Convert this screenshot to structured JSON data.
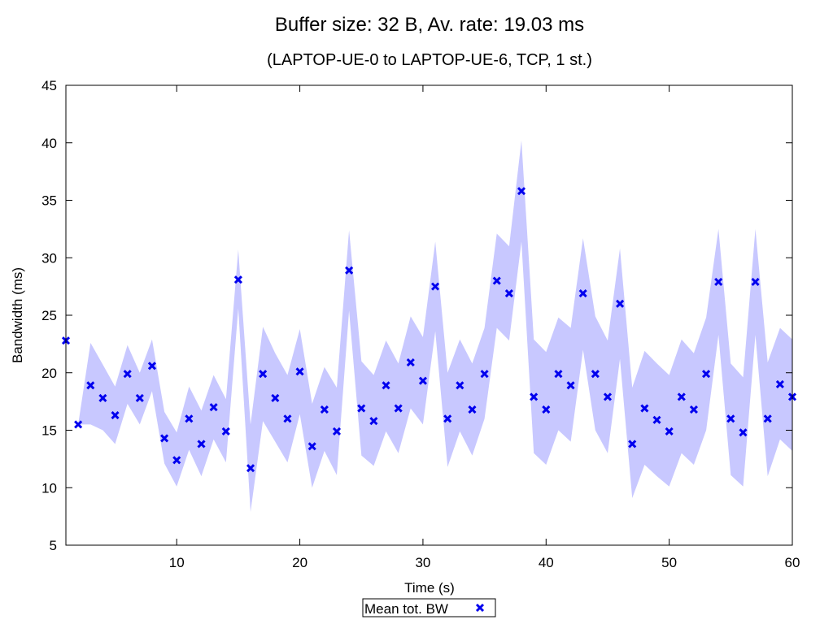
{
  "chart_data": {
    "type": "scatter",
    "title": "Buffer size: 32 B, Av. rate: 19.03 ms",
    "subtitle": "(LAPTOP-UE-0 to LAPTOP-UE-6, TCP, 1 st.)",
    "xlabel": "Time (s)",
    "ylabel": "Bandwidth (ms)",
    "xlim": [
      1,
      60
    ],
    "ylim": [
      5,
      45
    ],
    "xticks": [
      10,
      20,
      30,
      40,
      50,
      60
    ],
    "yticks": [
      5,
      10,
      15,
      20,
      25,
      30,
      35,
      40,
      45
    ],
    "grid": false,
    "legend_position": "bottom-center",
    "colors": {
      "marker": "#0000ee",
      "band": "#c8c8ff"
    },
    "series": [
      {
        "name": "Mean tot. BW",
        "x": [
          1,
          2,
          3,
          4,
          5,
          6,
          7,
          8,
          9,
          10,
          11,
          12,
          13,
          14,
          15,
          16,
          17,
          18,
          19,
          20,
          21,
          22,
          23,
          24,
          25,
          26,
          27,
          28,
          29,
          30,
          31,
          32,
          33,
          34,
          35,
          36,
          37,
          38,
          39,
          40,
          41,
          42,
          43,
          44,
          45,
          46,
          47,
          48,
          49,
          50,
          51,
          52,
          53,
          54,
          55,
          56,
          57,
          58,
          59,
          60
        ],
        "y": [
          22.8,
          15.5,
          18.9,
          17.8,
          16.3,
          19.9,
          17.8,
          20.6,
          14.3,
          12.4,
          16.0,
          13.8,
          17.0,
          14.9,
          28.1,
          11.7,
          19.9,
          17.8,
          16.0,
          20.1,
          13.6,
          16.8,
          14.9,
          28.9,
          16.9,
          15.8,
          18.9,
          16.9,
          20.9,
          19.3,
          27.5,
          16.0,
          18.9,
          16.8,
          19.9,
          28.0,
          26.9,
          35.8,
          17.9,
          16.8,
          19.9,
          18.9,
          26.9,
          19.9,
          17.9,
          26.0,
          13.8,
          16.9,
          15.9,
          14.9,
          17.9,
          16.8,
          19.9,
          27.9,
          16.0,
          14.8,
          27.9,
          16.0,
          19.0,
          17.9
        ]
      },
      {
        "name": "",
        "type": "area",
        "x": [
          1,
          2,
          3,
          4,
          5,
          6,
          7,
          8,
          9,
          10,
          11,
          12,
          13,
          14,
          15,
          16,
          17,
          18,
          19,
          20,
          21,
          22,
          23,
          24,
          25,
          26,
          27,
          28,
          29,
          30,
          31,
          32,
          33,
          34,
          35,
          36,
          37,
          38,
          39,
          40,
          41,
          42,
          43,
          44,
          45,
          46,
          47,
          48,
          49,
          50,
          51,
          52,
          53,
          54,
          55,
          56,
          57,
          58,
          59,
          60
        ],
        "lower": [
          22.8,
          15.5,
          15.5,
          15.0,
          13.8,
          17.3,
          15.5,
          18.4,
          12.1,
          10.1,
          13.3,
          11.0,
          14.2,
          12.2,
          25.6,
          7.9,
          15.8,
          14.0,
          12.2,
          16.4,
          10.0,
          13.2,
          11.1,
          25.4,
          12.8,
          11.9,
          14.9,
          13.0,
          16.9,
          15.5,
          23.6,
          11.8,
          14.9,
          12.8,
          16.0,
          23.9,
          22.8,
          31.4,
          13.0,
          12.0,
          15.0,
          14.0,
          22.0,
          15.0,
          13.0,
          21.2,
          9.1,
          12.0,
          11.0,
          10.1,
          13.0,
          12.0,
          15.0,
          23.3,
          11.1,
          10.1,
          23.3,
          11.0,
          14.2,
          13.2
        ],
        "upper": [
          22.8,
          15.5,
          22.6,
          20.7,
          18.8,
          22.4,
          20.0,
          22.9,
          16.6,
          14.8,
          18.8,
          16.7,
          19.8,
          17.7,
          30.7,
          15.5,
          24.0,
          21.7,
          19.8,
          23.8,
          17.3,
          20.5,
          18.7,
          32.4,
          21.0,
          19.8,
          22.8,
          20.8,
          24.9,
          23.1,
          31.4,
          20.0,
          22.9,
          20.8,
          23.9,
          32.1,
          31.0,
          40.2,
          22.9,
          21.8,
          24.8,
          23.9,
          31.7,
          24.9,
          22.8,
          30.8,
          18.7,
          21.9,
          20.8,
          19.8,
          22.9,
          21.7,
          24.8,
          32.5,
          20.8,
          19.6,
          32.5,
          20.9,
          23.9,
          22.9
        ]
      }
    ]
  }
}
